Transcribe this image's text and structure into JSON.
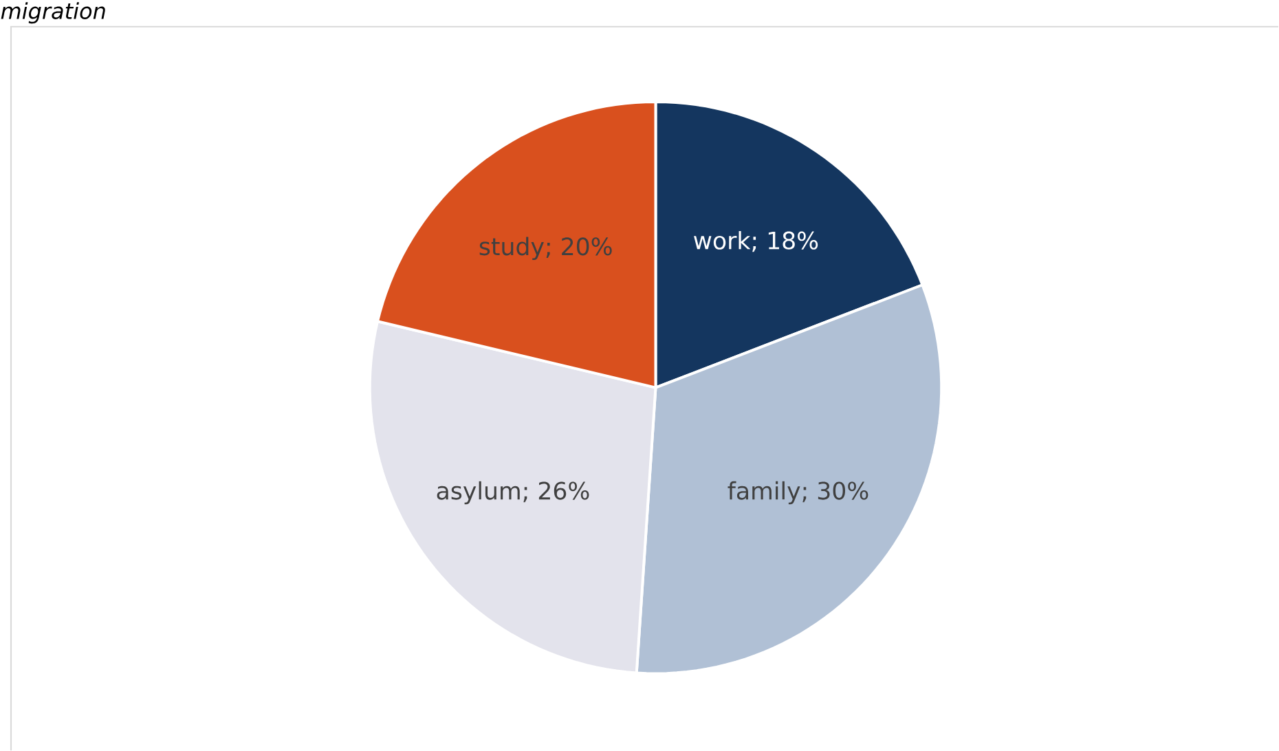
{
  "chart_data": {
    "type": "pie",
    "title": "*migration*",
    "categories": [
      "work",
      "family",
      "asylum",
      "study"
    ],
    "values": [
      18,
      30,
      26,
      20
    ],
    "colors": [
      "#14365f",
      "#b0c0d5",
      "#e3e3ec",
      "#d9501e"
    ],
    "value_labels": [
      "; 18%",
      "; 30%",
      "; 26%",
      "; 20%"
    ]
  }
}
